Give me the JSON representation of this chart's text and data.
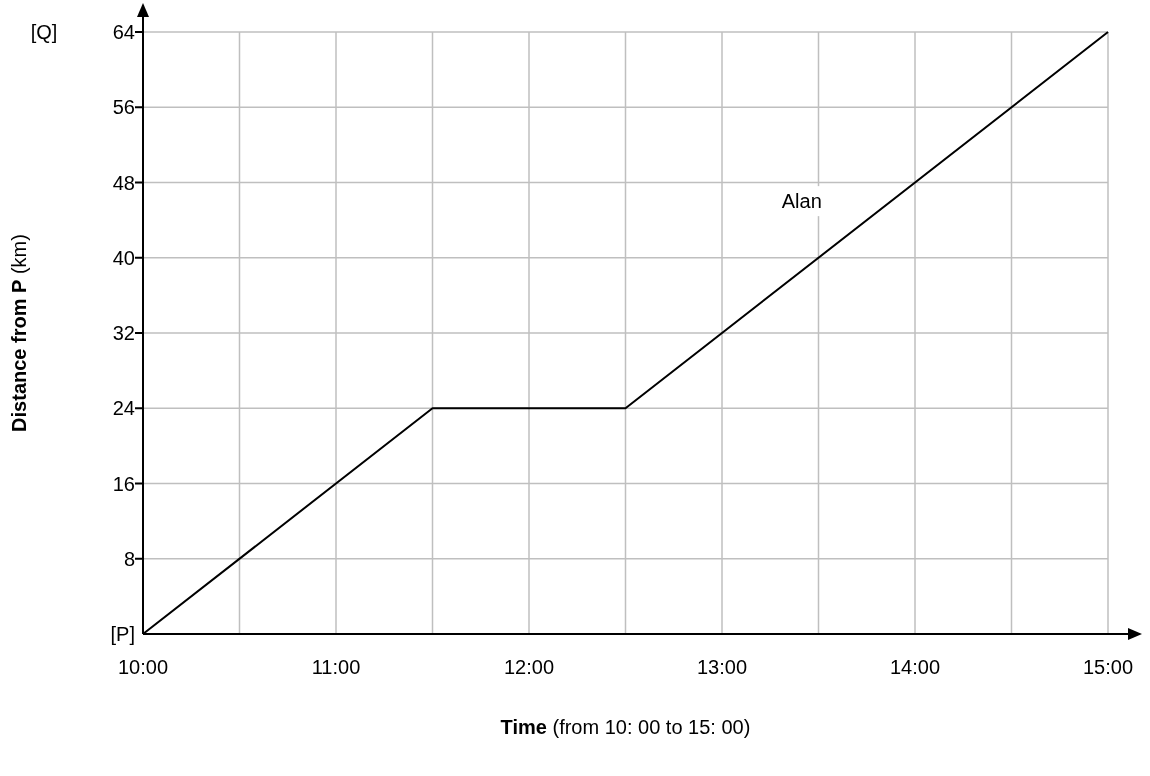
{
  "chart_data": {
    "type": "line",
    "xlabel": "Time (from 10: 00 to 15: 00)",
    "ylabel": "Distance from P (km)",
    "x": [
      10,
      11.5,
      12.5,
      15
    ],
    "series": [
      {
        "name": "Alan",
        "color": "#000000",
        "values": [
          0,
          24,
          24,
          64
        ]
      }
    ],
    "xlim": [
      10,
      15
    ],
    "ylim": [
      0,
      64
    ],
    "xticks": [
      {
        "value": 10,
        "label": "10:00"
      },
      {
        "value": 10.5,
        "label": null
      },
      {
        "value": 11,
        "label": "11:00"
      },
      {
        "value": 11.5,
        "label": null
      },
      {
        "value": 12,
        "label": "12:00"
      },
      {
        "value": 12.5,
        "label": null
      },
      {
        "value": 13,
        "label": "13:00"
      },
      {
        "value": 13.5,
        "label": null
      },
      {
        "value": 14,
        "label": "14:00"
      },
      {
        "value": 14.5,
        "label": null
      },
      {
        "value": 15,
        "label": "15:00"
      }
    ],
    "yticks": [
      {
        "value": 0,
        "label": "[P]"
      },
      8,
      16,
      24,
      32,
      40,
      48,
      56,
      64
    ],
    "annotations": [
      "[Q]"
    ],
    "grid": true,
    "legend": false,
    "marker": "none",
    "line_style": "solid"
  }
}
